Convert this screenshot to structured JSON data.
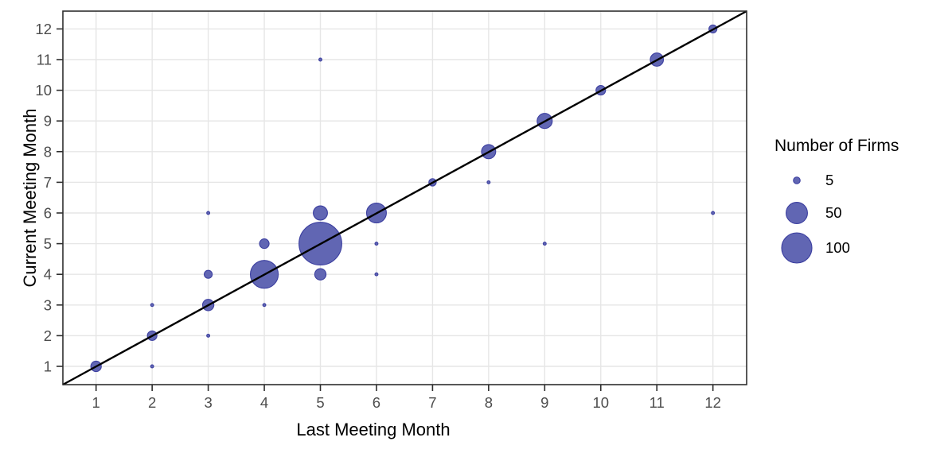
{
  "chart_data": {
    "type": "scatter",
    "subtype": "bubble",
    "title": "",
    "xlabel": "Last Meeting Month",
    "ylabel": "Current Meeting Month",
    "x_ticks": [
      1,
      2,
      3,
      4,
      5,
      6,
      7,
      8,
      9,
      10,
      11,
      12
    ],
    "y_ticks": [
      1,
      2,
      3,
      4,
      5,
      6,
      7,
      8,
      9,
      10,
      11,
      12
    ],
    "xlim": [
      0.45,
      12.55
    ],
    "ylim": [
      0.45,
      12.55
    ],
    "grid": "major gridlines only, light gray, white panel, black panel border",
    "reference_line": {
      "type": "identity",
      "equation": "y = x",
      "color": "#000000"
    },
    "legend": {
      "title": "Number of Firms",
      "position": "right",
      "items": [
        {
          "label": "5",
          "value": 5
        },
        {
          "label": "50",
          "value": 50
        },
        {
          "label": "100",
          "value": 100
        }
      ]
    },
    "size_scale": {
      "encoding": "area proportional to firms",
      "radius_px_per_sqrt_firm": 1.9
    },
    "points": [
      {
        "x": 1,
        "y": 1,
        "firms": 12
      },
      {
        "x": 2,
        "y": 1,
        "firms": 1
      },
      {
        "x": 2,
        "y": 2,
        "firms": 10
      },
      {
        "x": 2,
        "y": 3,
        "firms": 1
      },
      {
        "x": 3,
        "y": 2,
        "firms": 1
      },
      {
        "x": 3,
        "y": 3,
        "firms": 14
      },
      {
        "x": 3,
        "y": 4,
        "firms": 7
      },
      {
        "x": 3,
        "y": 6,
        "firms": 1
      },
      {
        "x": 4,
        "y": 3,
        "firms": 1
      },
      {
        "x": 4,
        "y": 4,
        "firms": 85
      },
      {
        "x": 4,
        "y": 5,
        "firms": 10
      },
      {
        "x": 5,
        "y": 4,
        "firms": 14
      },
      {
        "x": 5,
        "y": 5,
        "firms": 200
      },
      {
        "x": 5,
        "y": 6,
        "firms": 22
      },
      {
        "x": 5,
        "y": 11,
        "firms": 1
      },
      {
        "x": 6,
        "y": 4,
        "firms": 1
      },
      {
        "x": 6,
        "y": 5,
        "firms": 1
      },
      {
        "x": 6,
        "y": 6,
        "firms": 43
      },
      {
        "x": 7,
        "y": 7,
        "firms": 6
      },
      {
        "x": 8,
        "y": 7,
        "firms": 1
      },
      {
        "x": 8,
        "y": 8,
        "firms": 22
      },
      {
        "x": 9,
        "y": 5,
        "firms": 1
      },
      {
        "x": 9,
        "y": 9,
        "firms": 25
      },
      {
        "x": 10,
        "y": 10,
        "firms": 10
      },
      {
        "x": 11,
        "y": 11,
        "firms": 19
      },
      {
        "x": 12,
        "y": 6,
        "firms": 1
      },
      {
        "x": 12,
        "y": 12,
        "firms": 7
      }
    ],
    "colors": {
      "point_fill": "#6166b3",
      "point_stroke": "#3c3fa0",
      "grid_line": "#e6e6e6",
      "tick_text": "#4d4d4d",
      "axis_title_text": "#000000",
      "panel_border": "#2e2e2e",
      "reference_line": "#000000",
      "background": "#ffffff"
    }
  }
}
